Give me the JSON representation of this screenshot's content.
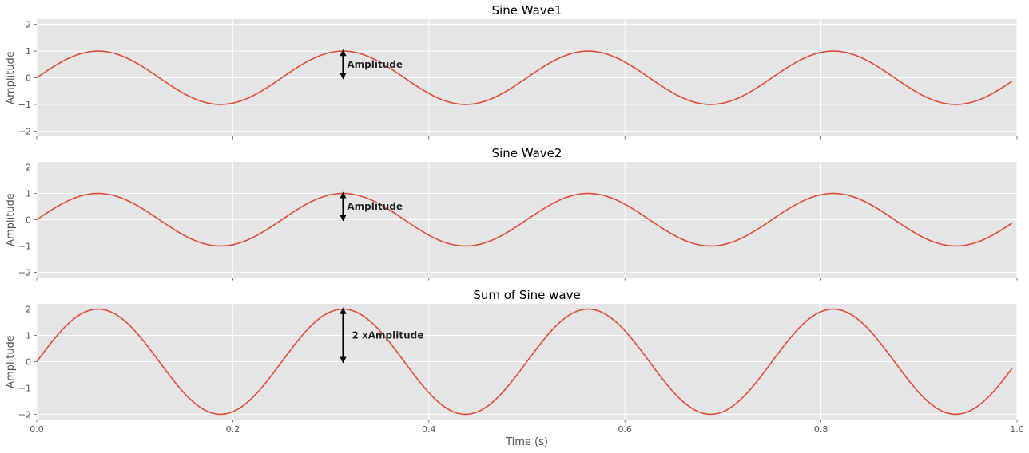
{
  "chart_data": [
    {
      "type": "line",
      "title": "Sine Wave1",
      "xlabel": "",
      "ylabel": "Amplitude",
      "xlim": [
        0,
        1
      ],
      "ylim": [
        -2.2,
        2.2
      ],
      "x_ticks": [
        0.0,
        0.2,
        0.4,
        0.6,
        0.8,
        1.0
      ],
      "x_tick_labels": [],
      "y_ticks": [
        -2,
        -1,
        0,
        1,
        2
      ],
      "y_tick_labels": [
        "−2",
        "−1",
        "0",
        "1",
        "2"
      ],
      "grid": true,
      "series": [
        {
          "function": "sin",
          "amplitude": 1,
          "frequency_hz": 4,
          "x_start": 0,
          "x_end": 0.995,
          "color": "#e24a33"
        }
      ],
      "annotation": {
        "text": "Amplitude",
        "x": 0.3125,
        "y_from": 0,
        "y_to": 1,
        "text_x": 0.3165,
        "text_y": 0.5
      }
    },
    {
      "type": "line",
      "title": "Sine Wave2",
      "xlabel": "",
      "ylabel": "Amplitude",
      "xlim": [
        0,
        1
      ],
      "ylim": [
        -2.2,
        2.2
      ],
      "x_ticks": [
        0.0,
        0.2,
        0.4,
        0.6,
        0.8,
        1.0
      ],
      "x_tick_labels": [],
      "y_ticks": [
        -2,
        -1,
        0,
        1,
        2
      ],
      "y_tick_labels": [
        "−2",
        "−1",
        "0",
        "1",
        "2"
      ],
      "grid": true,
      "series": [
        {
          "function": "sin",
          "amplitude": 1,
          "frequency_hz": 4,
          "x_start": 0,
          "x_end": 0.995,
          "color": "#e24a33"
        }
      ],
      "annotation": {
        "text": "Amplitude",
        "x": 0.3125,
        "y_from": 0,
        "y_to": 1,
        "text_x": 0.3165,
        "text_y": 0.5
      }
    },
    {
      "type": "line",
      "title": "Sum of Sine wave",
      "xlabel": "Time (s)",
      "ylabel": "Amplitude",
      "xlim": [
        0,
        1
      ],
      "ylim": [
        -2.2,
        2.2
      ],
      "x_ticks": [
        0.0,
        0.2,
        0.4,
        0.6,
        0.8,
        1.0
      ],
      "x_tick_labels": [
        "0.0",
        "0.2",
        "0.4",
        "0.6",
        "0.8",
        "1.0"
      ],
      "y_ticks": [
        -2,
        -1,
        0,
        1,
        2
      ],
      "y_tick_labels": [
        "−2",
        "−1",
        "0",
        "1",
        "2"
      ],
      "grid": true,
      "series": [
        {
          "function": "sin",
          "amplitude": 2,
          "frequency_hz": 4,
          "x_start": 0,
          "x_end": 0.995,
          "color": "#e24a33"
        }
      ],
      "annotation": {
        "text": "2 xAmplitude",
        "x": 0.3125,
        "y_from": 0,
        "y_to": 2,
        "text_x": 0.3215,
        "text_y": 1.0
      }
    }
  ]
}
